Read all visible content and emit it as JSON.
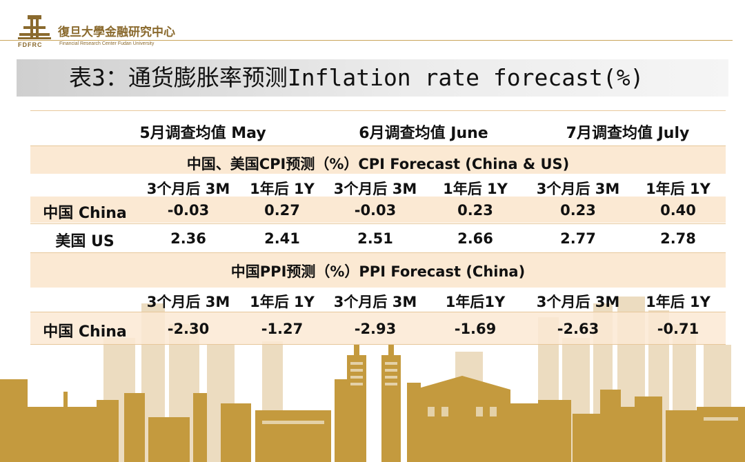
{
  "header": {
    "logo_abbr": "FDFRC",
    "logo_cn": "復旦大學金融研究中心",
    "logo_en": "Financial Research Center Fudan University"
  },
  "title": "表3：通货膨胀率预测Inflation rate forecast(%)",
  "months": [
    "5月调查均值 May",
    "6月调查均值 June",
    "7月调查均值 July"
  ],
  "cpi": {
    "section_title": "中国、美国CPI预测（%）CPI Forecast (China & US)",
    "subheaders": [
      "3个月后 3M",
      "1年后 1Y",
      "3个月后 3M",
      "1年后 1Y",
      "3个月后 3M",
      "1年后 1Y"
    ],
    "rows": [
      {
        "label": "中国 China",
        "values": [
          "-0.03",
          "0.27",
          "-0.03",
          "0.23",
          "0.23",
          "0.40"
        ]
      },
      {
        "label": "美国 US",
        "values": [
          "2.36",
          "2.41",
          "2.51",
          "2.66",
          "2.77",
          "2.78"
        ]
      }
    ]
  },
  "ppi": {
    "section_title": "中国PPI预测（%）PPI Forecast (China)",
    "subheaders": [
      "3个月后 3M",
      "1年后 1Y",
      "3个月后 3M",
      "1年后1Y",
      "3个月后 3M",
      "1年后 1Y"
    ],
    "rows": [
      {
        "label": "中国 China",
        "values": [
          "-2.30",
          "-1.27",
          "-2.93",
          "-1.69",
          "-2.63",
          "-0.71"
        ]
      }
    ]
  },
  "colors": {
    "gold": "#c9a45a",
    "band": "#fbe9d3",
    "skyline_front": "#c49a3e",
    "skyline_back": "#ecdcc0"
  }
}
